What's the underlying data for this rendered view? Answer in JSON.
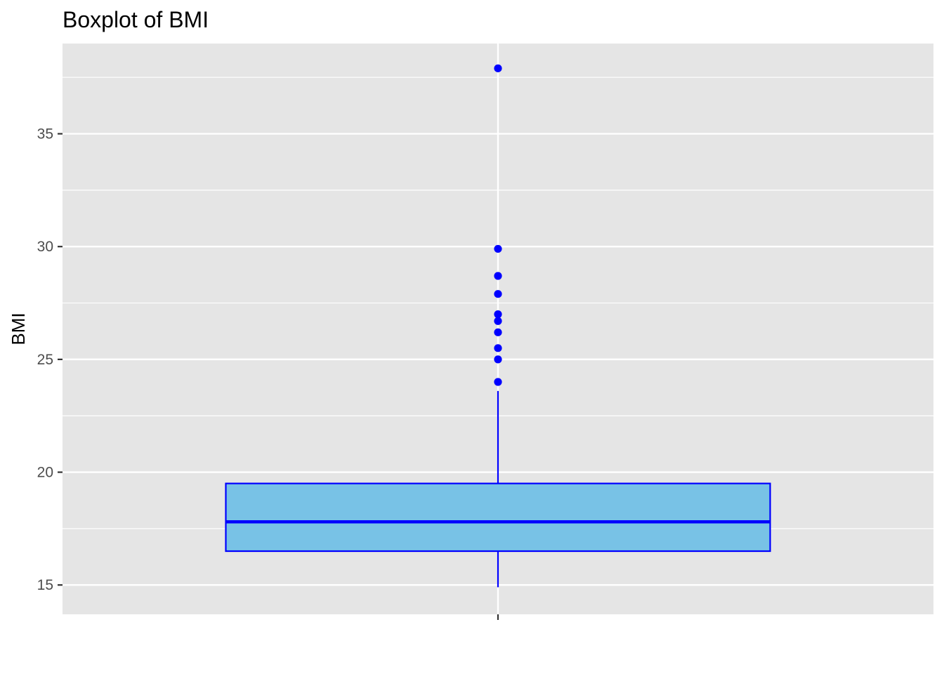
{
  "chart_data": {
    "type": "boxplot",
    "title": "Boxplot of BMI",
    "xlabel": "",
    "ylabel": "BMI",
    "ylim": [
      13.7,
      39.0
    ],
    "y_ticks": [
      15,
      20,
      25,
      30,
      35
    ],
    "grid": true,
    "categories": [
      ""
    ],
    "series": [
      {
        "whisker_low": 14.9,
        "q1": 16.5,
        "median": 17.8,
        "q3": 19.5,
        "whisker_high": 23.6,
        "outliers": [
          24.0,
          25.0,
          25.5,
          26.2,
          26.7,
          27.0,
          27.9,
          28.7,
          29.9,
          37.9
        ]
      }
    ],
    "colors": {
      "box_fill": "#78c2e6",
      "box_stroke": "#0000ff",
      "outlier": "#0000ff",
      "panel": "#e5e5e5",
      "grid": "#ffffff"
    }
  }
}
